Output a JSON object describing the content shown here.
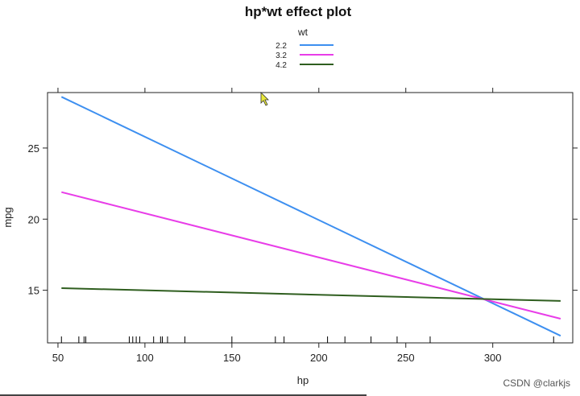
{
  "chart_data": {
    "type": "line",
    "title": "hp*wt effect plot",
    "xlabel": "hp",
    "ylabel": "mpg",
    "xlim": [
      44,
      346
    ],
    "ylim": [
      11.3,
      28.9
    ],
    "x_ticks": [
      50,
      100,
      150,
      200,
      250,
      300
    ],
    "y_ticks": [
      15,
      20,
      25
    ],
    "legend": {
      "title": "wt",
      "position": "top-center"
    },
    "series": [
      {
        "name": "2.2",
        "color": "#3d8ff0",
        "x": [
          52,
          339
        ],
        "y": [
          28.6,
          11.8
        ]
      },
      {
        "name": "3.2",
        "color": "#e83de8",
        "x": [
          52,
          339
        ],
        "y": [
          21.9,
          13.0
        ]
      },
      {
        "name": "4.2",
        "color": "#2f5e1f",
        "x": [
          52,
          339
        ],
        "y": [
          15.15,
          14.25
        ]
      }
    ],
    "rug_x": [
      52,
      62,
      65,
      66,
      91,
      93,
      95,
      97,
      105,
      109,
      110,
      113,
      123,
      150,
      175,
      180,
      205,
      215,
      230,
      245,
      264,
      335
    ]
  },
  "watermark": "CSDN @clarkjs"
}
